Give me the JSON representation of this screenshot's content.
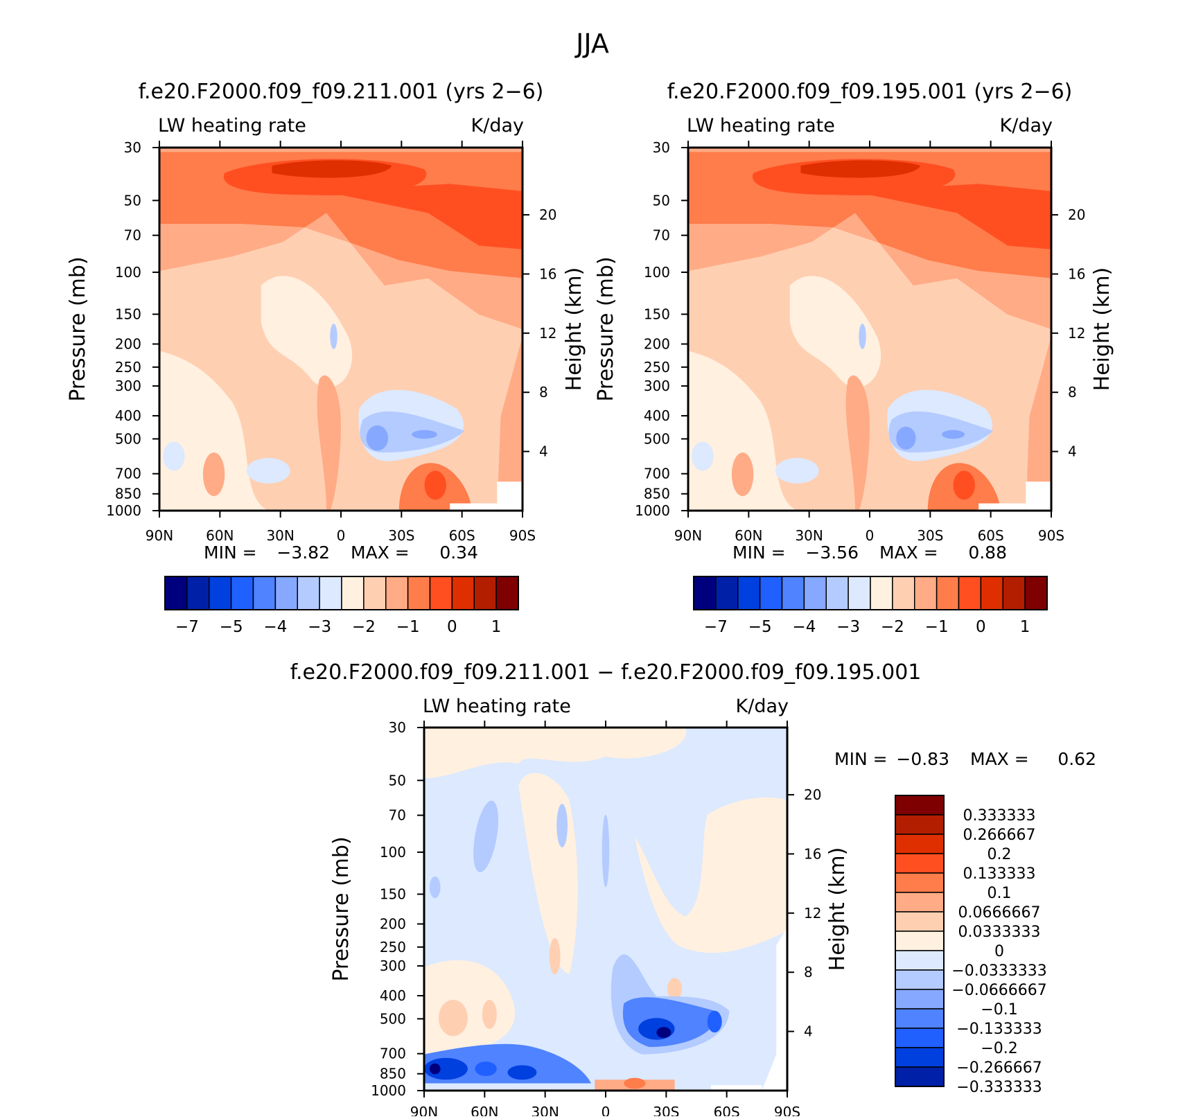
{
  "page": {
    "title": "JJA",
    "colors": {
      "blue_red_14": [
        "#00007f",
        "#0020a8",
        "#0040df",
        "#2060ff",
        "#4f83ff",
        "#86a8ff",
        "#b4cbff",
        "#dce9ff",
        "#fff0e0",
        "#ffcfb2",
        "#ffab86",
        "#ff7c4b",
        "#ff4f21",
        "#df2f00",
        "#b31e00",
        "#7f0000"
      ]
    }
  },
  "chart_data": [
    {
      "id": "panel-211",
      "type": "heatmap",
      "title": "f.e20.F2000.f09_f09.211.001 (yrs 2−6)",
      "subtitle_left": "LW heating rate",
      "subtitle_right": "K/day",
      "xlabel": "",
      "ylabel": "Pressure (mb)",
      "ylabel_right": "Height (km)",
      "x_ticks": [
        "90N",
        "60N",
        "30N",
        "0",
        "30S",
        "60S",
        "90S"
      ],
      "x_tick_values": [
        90,
        60,
        30,
        0,
        -30,
        -60,
        -90
      ],
      "y_ticks": [
        "30",
        "50",
        "70",
        "100",
        "150",
        "200",
        "250",
        "300",
        "400",
        "500",
        "700",
        "850",
        "1000"
      ],
      "y_tick_values": [
        30,
        50,
        70,
        100,
        150,
        200,
        250,
        300,
        400,
        500,
        700,
        850,
        1000
      ],
      "y_right_ticks": [
        "20",
        "16",
        "12",
        "8",
        "4"
      ],
      "y_right_tick_values": [
        20,
        16,
        12,
        8,
        4
      ],
      "ylim": [
        1000,
        30
      ],
      "min_label": "MIN =",
      "min_value": "−3.82",
      "max_label": "MAX =",
      "max_value": "0.34",
      "colorbar": {
        "orientation": "horizontal",
        "levels": [
          "−7",
          "−5",
          "−4",
          "−3",
          "−2",
          "−1",
          "0",
          "1"
        ],
        "level_values": [
          -7,
          -5,
          -4,
          -3,
          -2,
          -1,
          0,
          1
        ]
      }
    },
    {
      "id": "panel-195",
      "type": "heatmap",
      "title": "f.e20.F2000.f09_f09.195.001 (yrs 2−6)",
      "subtitle_left": "LW heating rate",
      "subtitle_right": "K/day",
      "xlabel": "",
      "ylabel": "Pressure (mb)",
      "ylabel_right": "Height (km)",
      "x_ticks": [
        "90N",
        "60N",
        "30N",
        "0",
        "30S",
        "60S",
        "90S"
      ],
      "x_tick_values": [
        90,
        60,
        30,
        0,
        -30,
        -60,
        -90
      ],
      "y_ticks": [
        "30",
        "50",
        "70",
        "100",
        "150",
        "200",
        "250",
        "300",
        "400",
        "500",
        "700",
        "850",
        "1000"
      ],
      "y_tick_values": [
        30,
        50,
        70,
        100,
        150,
        200,
        250,
        300,
        400,
        500,
        700,
        850,
        1000
      ],
      "y_right_ticks": [
        "20",
        "16",
        "12",
        "8",
        "4"
      ],
      "y_right_tick_values": [
        20,
        16,
        12,
        8,
        4
      ],
      "ylim": [
        1000,
        30
      ],
      "min_label": "MIN =",
      "min_value": "−3.56",
      "max_label": "MAX =",
      "max_value": "0.88",
      "colorbar": {
        "orientation": "horizontal",
        "levels": [
          "−7",
          "−5",
          "−4",
          "−3",
          "−2",
          "−1",
          "0",
          "1"
        ],
        "level_values": [
          -7,
          -5,
          -4,
          -3,
          -2,
          -1,
          0,
          1
        ]
      }
    },
    {
      "id": "panel-diff",
      "type": "heatmap",
      "title": "f.e20.F2000.f09_f09.211.001 − f.e20.F2000.f09_f09.195.001",
      "subtitle_left": "LW heating rate",
      "subtitle_right": "K/day",
      "xlabel": "",
      "ylabel": "Pressure (mb)",
      "ylabel_right": "Height (km)",
      "x_ticks": [
        "90N",
        "60N",
        "30N",
        "0",
        "30S",
        "60S",
        "90S"
      ],
      "x_tick_values": [
        90,
        60,
        30,
        0,
        -30,
        -60,
        -90
      ],
      "y_ticks": [
        "30",
        "50",
        "70",
        "100",
        "150",
        "200",
        "250",
        "300",
        "400",
        "500",
        "700",
        "850",
        "1000"
      ],
      "y_tick_values": [
        30,
        50,
        70,
        100,
        150,
        200,
        250,
        300,
        400,
        500,
        700,
        850,
        1000
      ],
      "y_right_ticks": [
        "20",
        "16",
        "12",
        "8",
        "4"
      ],
      "y_right_tick_values": [
        20,
        16,
        12,
        8,
        4
      ],
      "ylim": [
        1000,
        30
      ],
      "min_label": "MIN =",
      "min_value": "−0.83",
      "max_label": "MAX =",
      "max_value": "0.62",
      "colorbar": {
        "orientation": "vertical",
        "levels": [
          "0.333333",
          "0.266667",
          "0.2",
          "0.133333",
          "0.1",
          "0.0666667",
          "0.0333333",
          "0",
          "−0.0333333",
          "−0.0666667",
          "−0.1",
          "−0.133333",
          "−0.2",
          "−0.266667",
          "−0.333333"
        ],
        "level_values": [
          0.333333,
          0.266667,
          0.2,
          0.133333,
          0.1,
          0.0666667,
          0.0333333,
          0,
          -0.0333333,
          -0.0666667,
          -0.1,
          -0.133333,
          -0.2,
          -0.266667,
          -0.333333
        ]
      }
    }
  ]
}
